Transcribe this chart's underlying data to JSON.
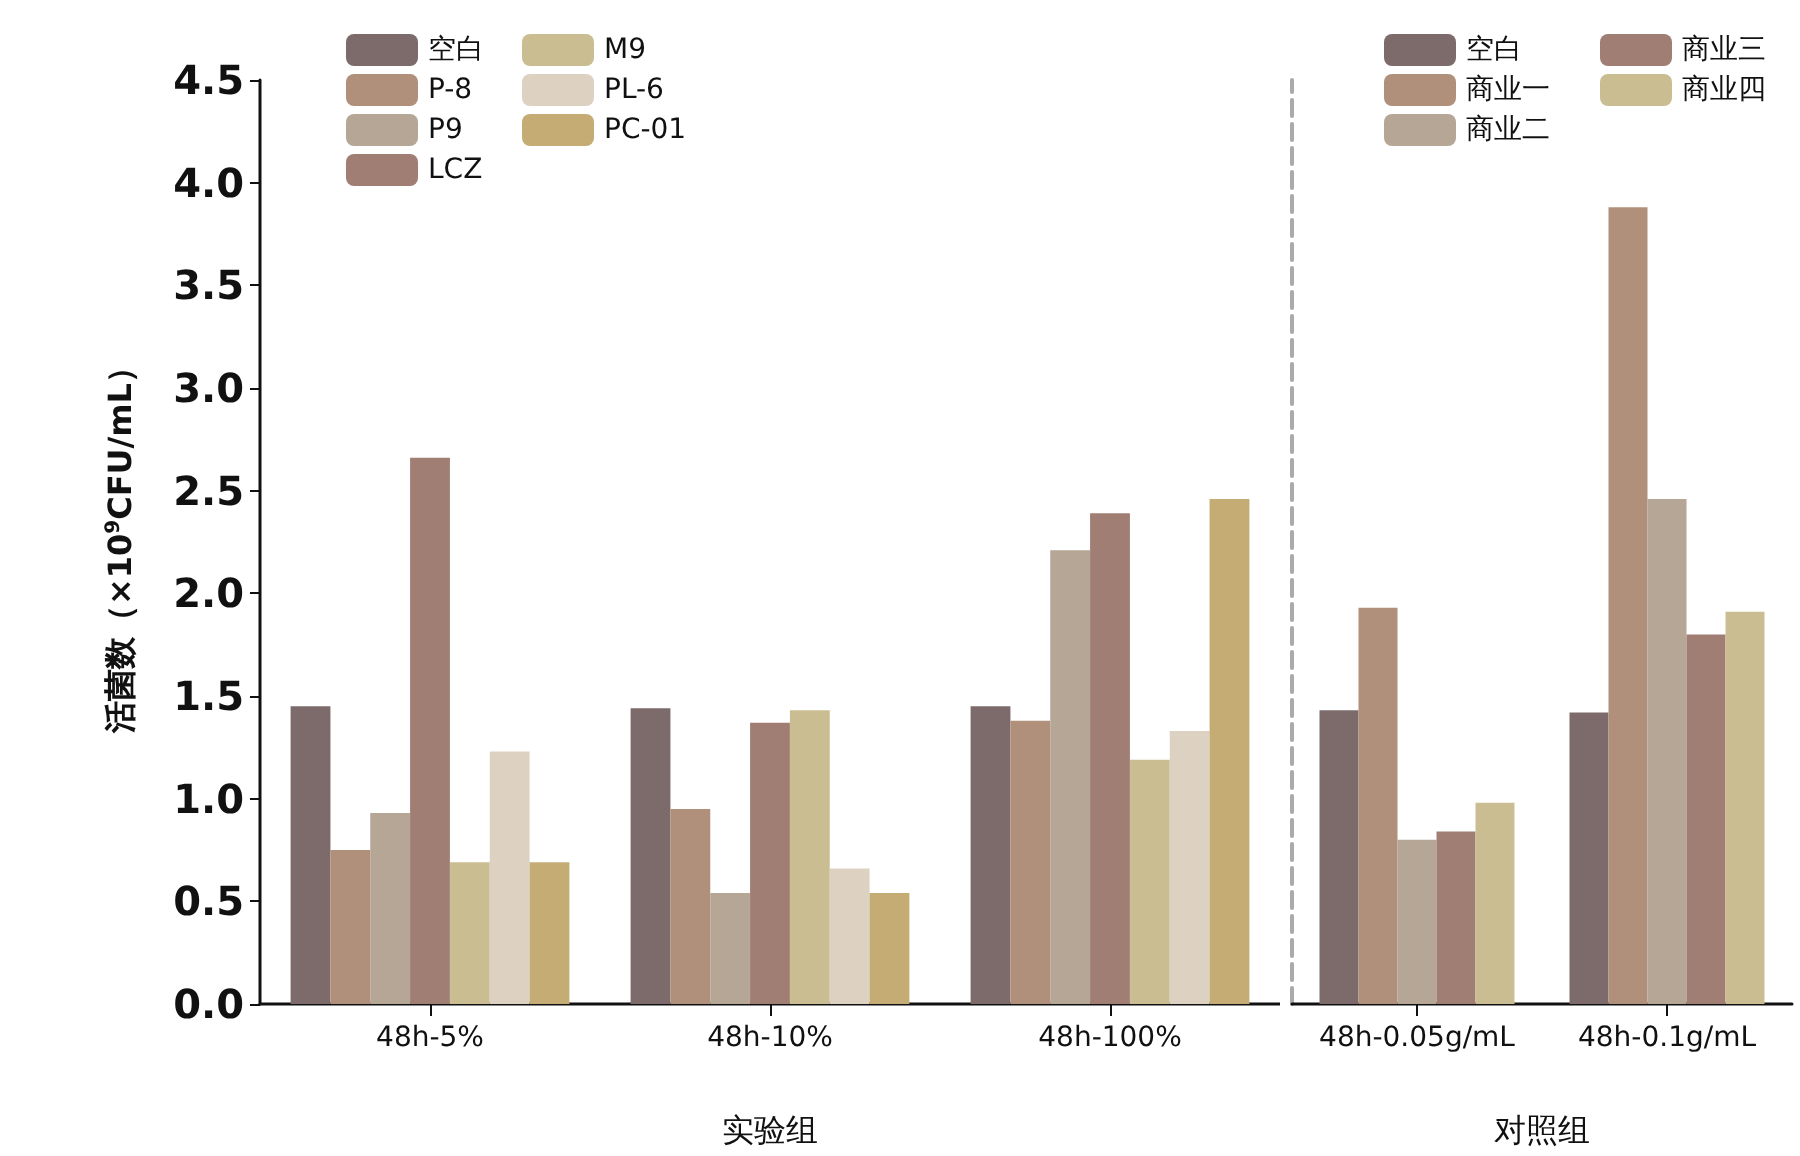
{
  "chart_data": [
    {
      "type": "bar",
      "ylabel": "活菌数（×10$^{9}$CFU/mL）",
      "xlabel": "实验组",
      "categories": [
        "48h-5%",
        "48h-10%",
        "48h-100%"
      ],
      "series": [
        {
          "name": "空白",
          "color": "#7d6b6b",
          "values": [
            1.45,
            1.44,
            1.45
          ]
        },
        {
          "name": "P-8",
          "color": "#b0907a",
          "values": [
            0.75,
            0.95,
            1.38
          ]
        },
        {
          "name": "P9",
          "color": "#b6a696",
          "values": [
            0.93,
            0.54,
            2.21
          ]
        },
        {
          "name": "LCZ",
          "color": "#a07e74",
          "values": [
            2.66,
            1.37,
            2.39
          ]
        },
        {
          "name": "M9",
          "color": "#cbbd92",
          "values": [
            0.69,
            1.43,
            1.19
          ]
        },
        {
          "name": "PL-6",
          "color": "#ddd1c1",
          "values": [
            1.23,
            0.66,
            1.33
          ]
        },
        {
          "name": "PC-01",
          "color": "#c4ac74",
          "values": [
            0.69,
            0.54,
            2.46
          ]
        }
      ],
      "ylim": [
        0,
        4.5
      ],
      "yticks": [
        {
          "value": 0,
          "label": "0.0"
        },
        {
          "value": 0.5,
          "label": "0.5"
        },
        {
          "value": 1,
          "label": "1.0"
        },
        {
          "value": 1.5,
          "label": "1.5"
        },
        {
          "value": 2,
          "label": "2.0"
        },
        {
          "value": 2.5,
          "label": "2.5"
        },
        {
          "value": 3,
          "label": "3.0"
        },
        {
          "value": 3.5,
          "label": "3.5"
        },
        {
          "value": 4,
          "label": "4.0"
        },
        {
          "value": 4.5,
          "label": "4.5"
        }
      ],
      "grid": false,
      "legend": "top left"
    },
    {
      "type": "bar",
      "xlabel": "对照组",
      "categories": [
        "48h-0.05g/mL",
        "48h-0.1g/mL"
      ],
      "series": [
        {
          "name": "空白",
          "color": "#7d6b6b",
          "values": [
            1.43,
            1.42
          ]
        },
        {
          "name": "商业一",
          "color": "#b0907a",
          "values": [
            1.93,
            3.88
          ]
        },
        {
          "name": "商业二",
          "color": "#b6a696",
          "values": [
            0.8,
            2.46
          ]
        },
        {
          "name": "商业三",
          "color": "#a07e74",
          "values": [
            0.84,
            1.8
          ]
        },
        {
          "name": "商业四",
          "color": "#cbbd92",
          "values": [
            0.98,
            1.91
          ]
        }
      ],
      "ylim": [
        0,
        4.5
      ],
      "grid": false,
      "legend": "top right",
      "tick_labels": "x"
    }
  ]
}
